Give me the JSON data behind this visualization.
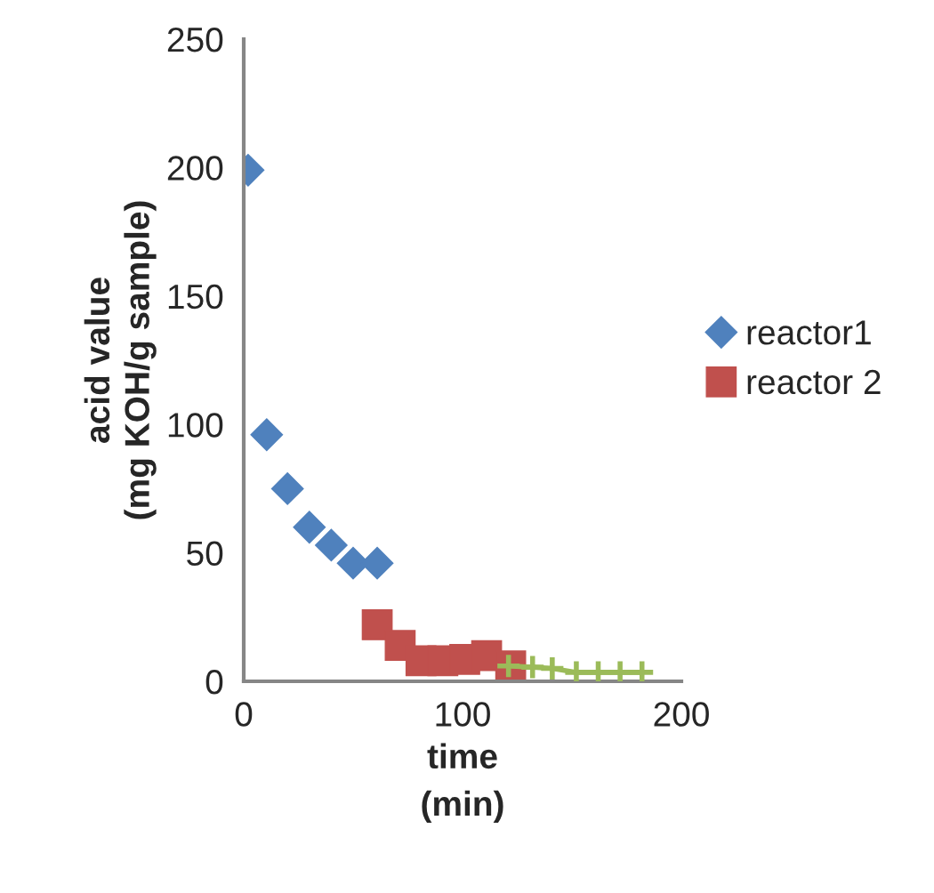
{
  "chart_data": {
    "type": "line",
    "xlabel": "time\n(min)",
    "ylabel": "acid value\n(mg KOH/g sample)",
    "xlim": [
      0,
      200
    ],
    "xticks": [
      0,
      100,
      200
    ],
    "ylim": [
      0,
      250
    ],
    "yticks": [
      0,
      50,
      100,
      150,
      200,
      250
    ],
    "grid": false,
    "legend": "right",
    "series": [
      {
        "type": "scatter",
        "name": "reactor1",
        "color": "#4f81bd",
        "marker": "diamond",
        "x": [
          2,
          10.5,
          20,
          30,
          40,
          50,
          61
        ],
        "values": [
          199,
          96,
          75,
          60,
          53,
          46,
          46
        ]
      },
      {
        "type": "scatter",
        "name": "reactor 2",
        "color": "#c0504d",
        "marker": "square",
        "x": [
          61,
          71.5,
          81,
          91,
          101,
          111,
          122
        ],
        "values": [
          22,
          14,
          8,
          8,
          8.5,
          10,
          6
        ]
      },
      {
        "color": "#9bbb59",
        "marker": "cross",
        "x": [
          121,
          132,
          141,
          152,
          162,
          172,
          182
        ],
        "values": [
          6,
          5.5,
          5,
          3.5,
          3.5,
          3.5,
          3.5
        ]
      }
    ]
  }
}
